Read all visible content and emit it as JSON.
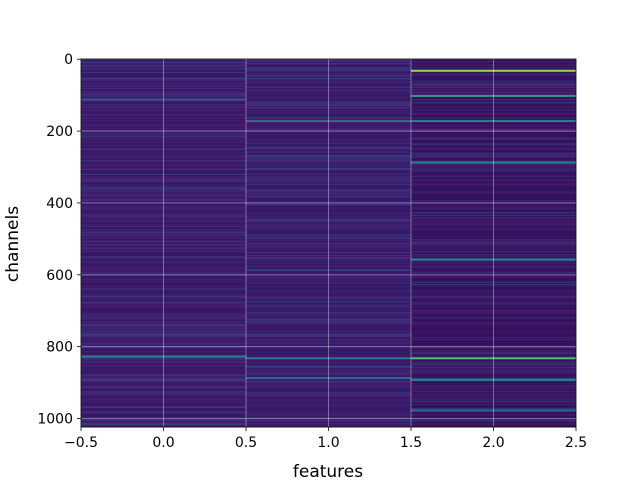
{
  "chart_data": {
    "type": "heatmap",
    "title": "",
    "xlabel": "features",
    "ylabel": "channels",
    "columns": [
      0,
      1,
      2
    ],
    "rows": 1024,
    "xlim": [
      -0.5,
      2.5
    ],
    "ylim": [
      1023.5,
      -0.5
    ],
    "x_ticks": [
      -0.5,
      0.0,
      0.5,
      1.0,
      1.5,
      2.0,
      2.5
    ],
    "x_tick_labels": [
      "−0.5",
      "0.0",
      "0.5",
      "1.0",
      "1.5",
      "2.0",
      "2.5"
    ],
    "y_ticks": [
      0,
      200,
      400,
      600,
      800,
      1000
    ],
    "y_tick_labels": [
      "0",
      "200",
      "400",
      "600",
      "800",
      "1000"
    ],
    "grid": true,
    "colormap": "viridis",
    "background_color": "#3a1a6e",
    "column_base_color": [
      "#421b6e",
      "#3e1f70",
      "#3a0f5e"
    ],
    "highlights": [
      {
        "column": 0,
        "channel": 825,
        "value": 0.45
      },
      {
        "column": 0,
        "channel": 110,
        "value": 0.28
      },
      {
        "column": 1,
        "channel": 830,
        "value": 0.4
      },
      {
        "column": 1,
        "channel": 170,
        "value": 0.35
      },
      {
        "column": 1,
        "channel": 885,
        "value": 0.35
      },
      {
        "column": 2,
        "channel": 30,
        "value": 0.85
      },
      {
        "column": 2,
        "channel": 100,
        "value": 0.55
      },
      {
        "column": 2,
        "channel": 170,
        "value": 0.45
      },
      {
        "column": 2,
        "channel": 285,
        "value": 0.45
      },
      {
        "column": 2,
        "channel": 555,
        "value": 0.45
      },
      {
        "column": 2,
        "channel": 830,
        "value": 0.7
      },
      {
        "column": 2,
        "channel": 890,
        "value": 0.45
      },
      {
        "column": 2,
        "channel": 975,
        "value": 0.35
      }
    ]
  }
}
